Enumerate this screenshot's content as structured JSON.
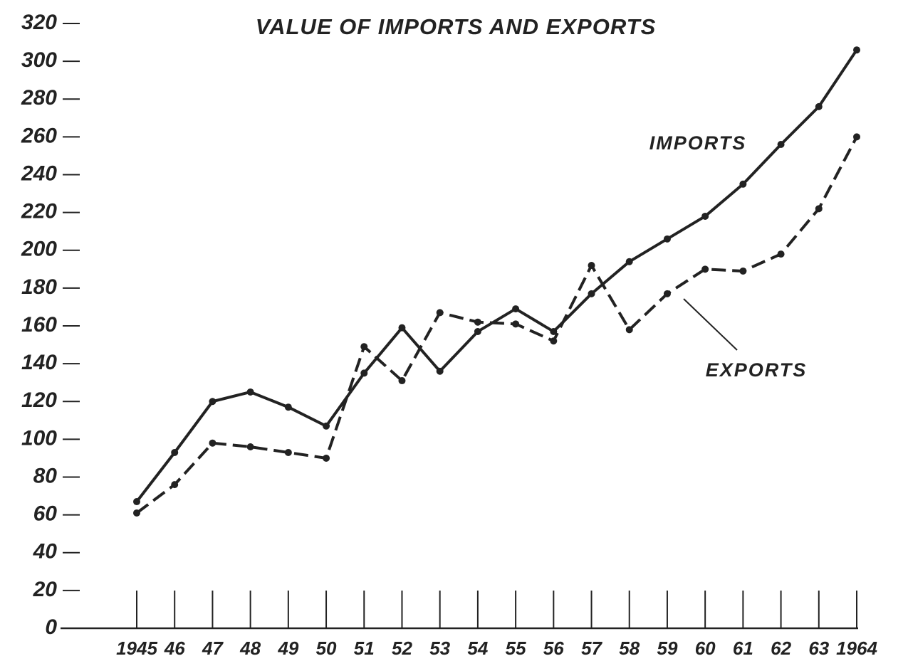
{
  "chart_data": {
    "type": "line",
    "title": "VALUE OF IMPORTS AND EXPORTS",
    "categories": [
      "1945",
      "46",
      "47",
      "48",
      "49",
      "50",
      "51",
      "52",
      "53",
      "54",
      "55",
      "56",
      "57",
      "58",
      "59",
      "60",
      "61",
      "62",
      "63",
      "1964"
    ],
    "series": [
      {
        "name": "IMPORTS",
        "color": "#222222",
        "dashed": false,
        "values": [
          67,
          93,
          120,
          125,
          117,
          107,
          135,
          159,
          136,
          157,
          169,
          157,
          177,
          194,
          206,
          218,
          235,
          256,
          276,
          306
        ]
      },
      {
        "name": "EXPORTS",
        "color": "#222222",
        "dashed": true,
        "values": [
          61,
          76,
          98,
          96,
          93,
          90,
          149,
          131,
          167,
          162,
          161,
          152,
          192,
          158,
          177,
          190,
          189,
          198,
          222,
          260
        ]
      }
    ],
    "ylim": [
      0,
      320
    ],
    "yticks": [
      0,
      20,
      40,
      60,
      80,
      100,
      120,
      140,
      160,
      180,
      200,
      220,
      240,
      260,
      280,
      300,
      320
    ]
  }
}
